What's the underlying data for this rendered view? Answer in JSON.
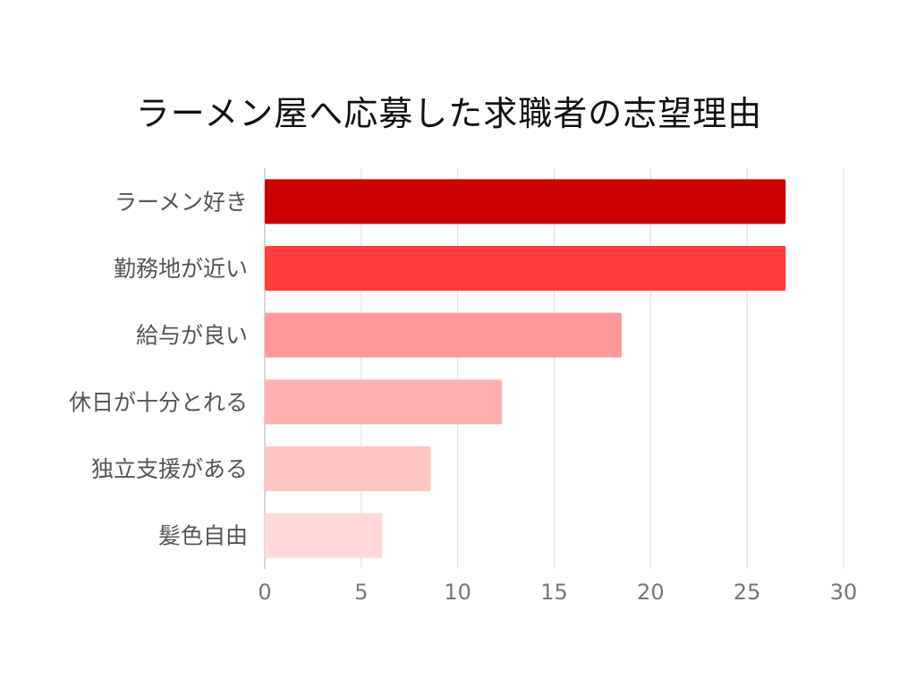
{
  "chart_data": {
    "type": "bar",
    "orientation": "horizontal",
    "title": "ラーメン屋へ応募した求職者の志望理由",
    "categories": [
      "ラーメン好き",
      "勤務地が近い",
      "給与が良い",
      "休日が十分とれる",
      "独立支援がある",
      "髪色自由"
    ],
    "values": [
      27,
      27,
      18.5,
      12.3,
      8.6,
      6.1
    ],
    "colors": [
      "#cc0000",
      "#ff3b3b",
      "#ff9999",
      "#ffb0b0",
      "#ffc4c4",
      "#ffd8d8"
    ],
    "xlim": [
      0,
      30
    ],
    "xticks": [
      0,
      5,
      10,
      15,
      20,
      25,
      30
    ],
    "grid": true,
    "xlabel": "",
    "ylabel": ""
  }
}
